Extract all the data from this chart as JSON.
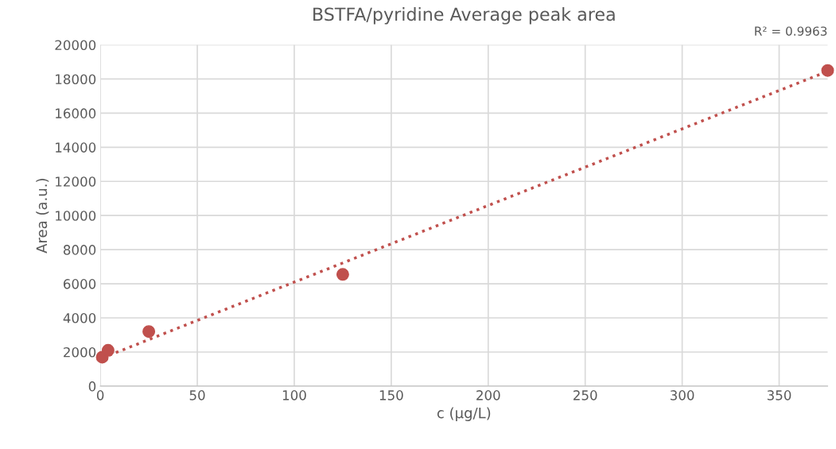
{
  "chart_data": {
    "type": "scatter",
    "title": "BSTFA/pyridine Average peak area",
    "xlabel": "c (μg/L)",
    "ylabel": "Area (a.u.)",
    "annotations": [
      "R² = 0.9963"
    ],
    "series": [
      {
        "color": "#c0504d",
        "x": [
          1,
          4,
          25,
          125,
          375
        ],
        "values": [
          1700,
          2100,
          3200,
          6550,
          18500
        ],
        "marker": "circle"
      },
      {
        "type": "line",
        "color": "#c0504d",
        "x": [
          1,
          375
        ],
        "values": [
          1650,
          18450
        ],
        "line_style": "dotted",
        "marker": "none"
      }
    ],
    "xlim": [
      0,
      375
    ],
    "xticks": [
      0,
      50,
      100,
      150,
      200,
      250,
      300,
      350
    ],
    "ylim": [
      0,
      20000
    ],
    "yticks": [
      0,
      2000,
      4000,
      6000,
      8000,
      10000,
      12000,
      14000,
      16000,
      18000,
      20000
    ],
    "grid": true,
    "legend": false
  }
}
